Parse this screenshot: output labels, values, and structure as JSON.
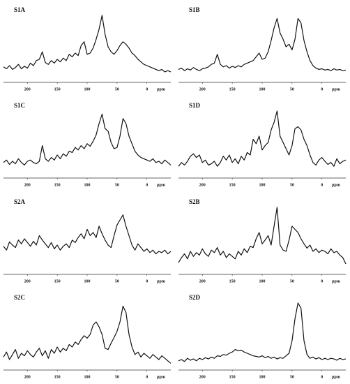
{
  "chart_data": [
    {
      "type": "line",
      "title": "S1A",
      "xlabel": "ppm",
      "color": "#111111",
      "xlim": [
        240,
        -40
      ],
      "ylim": [
        0,
        100
      ],
      "xticks": [
        200,
        150,
        100,
        50,
        0
      ],
      "x": [
        240,
        235,
        230,
        225,
        220,
        215,
        210,
        205,
        200,
        195,
        190,
        185,
        180,
        175,
        170,
        165,
        160,
        155,
        150,
        145,
        140,
        135,
        130,
        125,
        120,
        115,
        110,
        105,
        100,
        95,
        90,
        85,
        80,
        75,
        70,
        65,
        60,
        55,
        50,
        45,
        40,
        35,
        30,
        25,
        20,
        15,
        10,
        5,
        0,
        -5,
        -10,
        -15,
        -20,
        -25,
        -30,
        -35,
        -40
      ],
      "values": [
        18,
        15,
        20,
        14,
        17,
        22,
        15,
        19,
        16,
        24,
        20,
        28,
        30,
        42,
        25,
        22,
        28,
        24,
        30,
        26,
        32,
        28,
        38,
        34,
        40,
        36,
        52,
        58,
        38,
        40,
        48,
        62,
        78,
        100,
        70,
        50,
        42,
        38,
        44,
        52,
        58,
        54,
        48,
        40,
        36,
        30,
        26,
        22,
        20,
        18,
        16,
        14,
        12,
        14,
        10,
        12,
        10
      ]
    },
    {
      "type": "line",
      "title": "S1B",
      "xlabel": "ppm",
      "color": "#111111",
      "xlim": [
        240,
        -40
      ],
      "ylim": [
        0,
        100
      ],
      "xticks": [
        200,
        150,
        100,
        50,
        0
      ],
      "x": [
        240,
        235,
        230,
        225,
        220,
        215,
        210,
        205,
        200,
        195,
        190,
        185,
        180,
        175,
        170,
        165,
        160,
        155,
        150,
        145,
        140,
        135,
        130,
        125,
        120,
        115,
        110,
        105,
        100,
        95,
        90,
        85,
        80,
        75,
        70,
        65,
        60,
        55,
        50,
        45,
        40,
        35,
        30,
        25,
        20,
        15,
        10,
        5,
        0,
        -5,
        -10,
        -15,
        -20,
        -25,
        -30,
        -35,
        -40
      ],
      "values": [
        14,
        16,
        12,
        15,
        13,
        17,
        14,
        12,
        15,
        16,
        18,
        22,
        24,
        38,
        22,
        18,
        20,
        16,
        19,
        17,
        20,
        18,
        22,
        24,
        26,
        28,
        34,
        40,
        30,
        32,
        42,
        60,
        80,
        95,
        72,
        62,
        50,
        54,
        45,
        62,
        95,
        88,
        60,
        42,
        28,
        20,
        16,
        14,
        15,
        13,
        14,
        12,
        15,
        13,
        14,
        12,
        13
      ]
    },
    {
      "type": "line",
      "title": "S1C",
      "xlabel": "ppm",
      "color": "#111111",
      "xlim": [
        240,
        -40
      ],
      "ylim": [
        0,
        100
      ],
      "xticks": [
        200,
        150,
        100,
        50,
        0
      ],
      "x": [
        240,
        235,
        230,
        225,
        220,
        215,
        210,
        205,
        200,
        195,
        190,
        185,
        180,
        175,
        170,
        165,
        160,
        155,
        150,
        145,
        140,
        135,
        130,
        125,
        120,
        115,
        110,
        105,
        100,
        95,
        90,
        85,
        80,
        75,
        70,
        65,
        60,
        55,
        50,
        45,
        40,
        35,
        30,
        25,
        20,
        15,
        10,
        5,
        0,
        -5,
        -10,
        -15,
        -20,
        -25,
        -30,
        -35,
        -40
      ],
      "values": [
        18,
        22,
        15,
        20,
        16,
        24,
        18,
        14,
        20,
        22,
        18,
        16,
        20,
        45,
        24,
        20,
        26,
        22,
        30,
        24,
        32,
        28,
        36,
        34,
        42,
        38,
        45,
        40,
        48,
        44,
        52,
        62,
        80,
        95,
        72,
        68,
        50,
        40,
        42,
        60,
        88,
        80,
        60,
        48,
        36,
        30,
        26,
        24,
        22,
        20,
        24,
        18,
        20,
        16,
        22,
        18,
        14
      ]
    },
    {
      "type": "line",
      "title": "S1D",
      "xlabel": "ppm",
      "color": "#111111",
      "xlim": [
        240,
        -40
      ],
      "ylim": [
        0,
        100
      ],
      "xticks": [
        200,
        150,
        100,
        50,
        0
      ],
      "x": [
        240,
        235,
        230,
        225,
        220,
        215,
        210,
        205,
        200,
        195,
        190,
        185,
        180,
        175,
        170,
        165,
        160,
        155,
        150,
        145,
        140,
        135,
        130,
        125,
        120,
        115,
        110,
        105,
        100,
        95,
        90,
        85,
        80,
        75,
        70,
        65,
        60,
        55,
        50,
        45,
        40,
        35,
        30,
        25,
        20,
        15,
        10,
        5,
        0,
        -5,
        -10,
        -15,
        -20,
        -25,
        -30,
        -35,
        -40
      ],
      "values": [
        12,
        18,
        14,
        20,
        28,
        32,
        26,
        30,
        18,
        22,
        14,
        16,
        20,
        12,
        18,
        28,
        22,
        30,
        18,
        24,
        16,
        28,
        22,
        34,
        30,
        55,
        48,
        60,
        38,
        45,
        50,
        70,
        82,
        100,
        60,
        50,
        40,
        30,
        45,
        72,
        75,
        70,
        55,
        45,
        30,
        18,
        14,
        22,
        26,
        20,
        15,
        18,
        12,
        24,
        16,
        20,
        22
      ]
    },
    {
      "type": "line",
      "title": "S2A",
      "xlabel": "ppm",
      "color": "#111111",
      "xlim": [
        240,
        -40
      ],
      "ylim": [
        0,
        100
      ],
      "xticks": [
        200,
        150,
        100,
        50,
        0
      ],
      "x": [
        240,
        235,
        230,
        225,
        220,
        215,
        210,
        205,
        200,
        195,
        190,
        185,
        180,
        175,
        170,
        165,
        160,
        155,
        150,
        145,
        140,
        135,
        130,
        125,
        120,
        115,
        110,
        105,
        100,
        95,
        90,
        85,
        80,
        75,
        70,
        65,
        60,
        55,
        50,
        45,
        40,
        35,
        30,
        25,
        20,
        15,
        10,
        5,
        0,
        -5,
        -10,
        -15,
        -20,
        -25,
        -30,
        -35,
        -40
      ],
      "values": [
        38,
        32,
        45,
        40,
        36,
        48,
        42,
        50,
        44,
        38,
        46,
        40,
        55,
        48,
        42,
        36,
        44,
        34,
        40,
        32,
        38,
        42,
        36,
        48,
        44,
        52,
        58,
        50,
        65,
        55,
        60,
        52,
        70,
        58,
        48,
        40,
        36,
        55,
        72,
        80,
        88,
        70,
        55,
        40,
        32,
        42,
        36,
        30,
        34,
        28,
        32,
        26,
        30,
        28,
        32,
        26,
        30
      ]
    },
    {
      "type": "line",
      "title": "S2B",
      "xlabel": "ppm",
      "color": "#111111",
      "xlim": [
        240,
        -40
      ],
      "ylim": [
        0,
        100
      ],
      "xticks": [
        200,
        150,
        100,
        50,
        0
      ],
      "x": [
        240,
        235,
        230,
        225,
        220,
        215,
        210,
        205,
        200,
        195,
        190,
        185,
        180,
        175,
        170,
        165,
        160,
        155,
        150,
        145,
        140,
        135,
        130,
        125,
        120,
        115,
        110,
        105,
        100,
        95,
        90,
        85,
        80,
        75,
        70,
        65,
        60,
        55,
        50,
        45,
        40,
        35,
        30,
        25,
        20,
        15,
        10,
        5,
        0,
        -5,
        -10,
        -15,
        -20,
        -25,
        -30,
        -35,
        -40
      ],
      "values": [
        12,
        20,
        26,
        18,
        30,
        22,
        28,
        24,
        34,
        26,
        22,
        32,
        28,
        36,
        24,
        30,
        20,
        26,
        22,
        18,
        30,
        24,
        34,
        28,
        38,
        36,
        50,
        60,
        42,
        48,
        55,
        40,
        70,
        100,
        40,
        32,
        30,
        48,
        70,
        65,
        60,
        50,
        42,
        35,
        40,
        30,
        34,
        28,
        32,
        30,
        26,
        34,
        28,
        30,
        24,
        20,
        10
      ]
    },
    {
      "type": "line",
      "title": "S2C",
      "xlabel": "ppm",
      "color": "#111111",
      "xlim": [
        240,
        -40
      ],
      "ylim": [
        0,
        100
      ],
      "xticks": [
        200,
        150,
        100,
        50,
        0
      ],
      "x": [
        240,
        235,
        230,
        225,
        220,
        215,
        210,
        205,
        200,
        195,
        190,
        185,
        180,
        175,
        170,
        165,
        160,
        155,
        150,
        145,
        140,
        135,
        130,
        125,
        120,
        115,
        110,
        105,
        100,
        95,
        90,
        85,
        80,
        75,
        70,
        65,
        60,
        55,
        50,
        45,
        40,
        35,
        30,
        25,
        20,
        15,
        10,
        5,
        0,
        -5,
        -10,
        -15,
        -20,
        -25,
        -30,
        -35,
        -40
      ],
      "values": [
        14,
        22,
        10,
        18,
        26,
        12,
        20,
        16,
        24,
        18,
        14,
        22,
        28,
        16,
        24,
        12,
        26,
        20,
        30,
        22,
        28,
        24,
        34,
        30,
        38,
        34,
        42,
        48,
        44,
        50,
        65,
        70,
        62,
        50,
        28,
        26,
        36,
        45,
        55,
        70,
        95,
        85,
        50,
        30,
        18,
        22,
        14,
        20,
        16,
        12,
        18,
        14,
        10,
        16,
        12,
        8,
        4
      ]
    },
    {
      "type": "line",
      "title": "S2D",
      "xlabel": "ppm",
      "color": "#111111",
      "xlim": [
        240,
        -40
      ],
      "ylim": [
        0,
        100
      ],
      "xticks": [
        200,
        150,
        100,
        50,
        0
      ],
      "x": [
        240,
        235,
        230,
        225,
        220,
        215,
        210,
        205,
        200,
        195,
        190,
        185,
        180,
        175,
        170,
        165,
        160,
        155,
        150,
        145,
        140,
        135,
        130,
        125,
        120,
        115,
        110,
        105,
        100,
        95,
        90,
        85,
        80,
        75,
        70,
        65,
        60,
        55,
        50,
        45,
        40,
        35,
        30,
        25,
        20,
        15,
        10,
        5,
        0,
        -5,
        -10,
        -15,
        -20,
        -25,
        -30,
        -35,
        -40
      ],
      "values": [
        8,
        10,
        7,
        12,
        9,
        11,
        8,
        12,
        10,
        13,
        11,
        14,
        12,
        16,
        15,
        18,
        17,
        20,
        22,
        26,
        24,
        25,
        22,
        20,
        18,
        16,
        15,
        14,
        16,
        13,
        15,
        12,
        14,
        11,
        13,
        12,
        16,
        20,
        40,
        75,
        100,
        92,
        40,
        18,
        12,
        14,
        11,
        13,
        10,
        12,
        10,
        12,
        11,
        9,
        12,
        10,
        11
      ]
    }
  ]
}
